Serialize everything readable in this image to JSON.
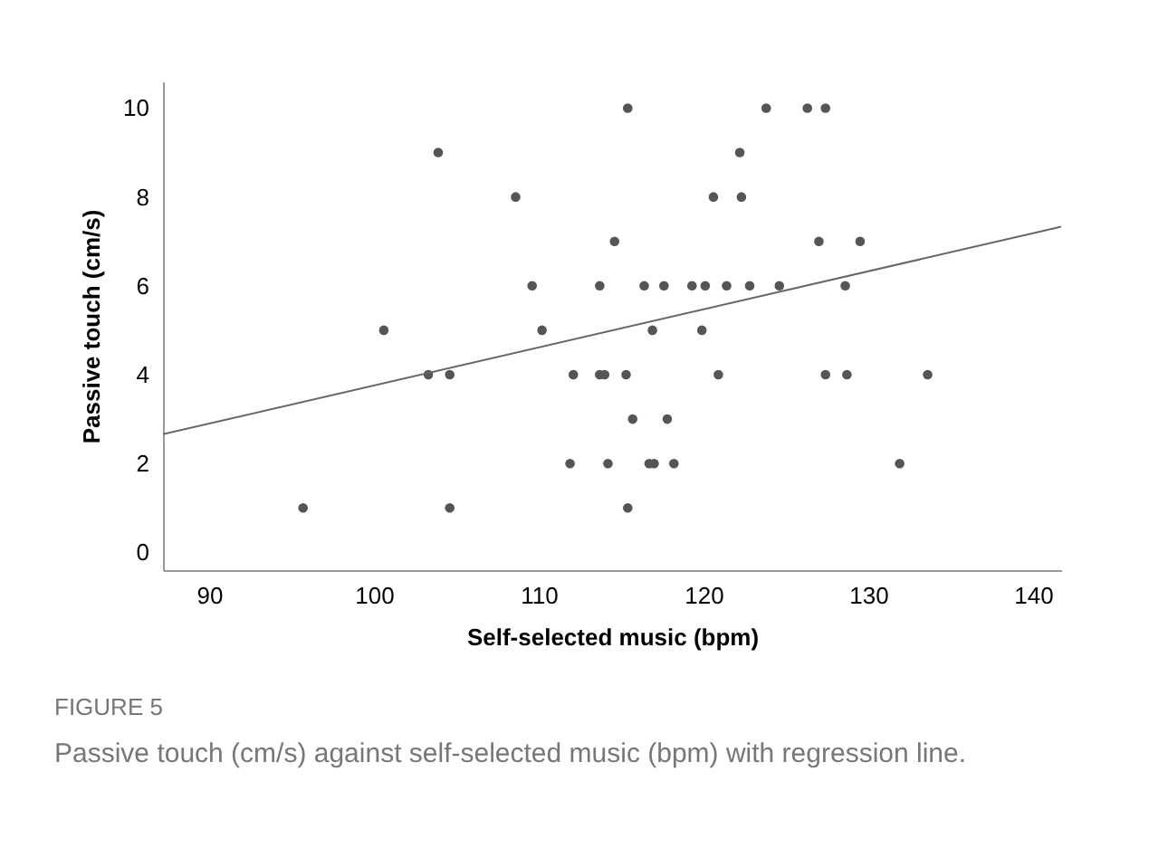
{
  "chart_data": {
    "type": "scatter",
    "xlabel": "Self-selected music (bpm)",
    "ylabel": "Passive touch (cm/s)",
    "xlim": [
      87.2,
      141.7
    ],
    "ylim": [
      -0.4,
      10.6
    ],
    "xticks": [
      90,
      100,
      110,
      120,
      130,
      140
    ],
    "yticks": [
      0,
      2,
      4,
      6,
      8,
      10
    ],
    "grid": false,
    "series": [
      {
        "marker": "circle",
        "color": "#555555",
        "x": [
          95.7,
          100.6,
          103.3,
          103.9,
          104.6,
          104.6,
          108.6,
          109.6,
          110.2,
          111.9,
          112.1,
          113.7,
          113.7,
          114.0,
          114.2,
          114.6,
          115.3,
          115.4,
          115.4,
          115.7,
          116.4,
          116.7,
          117.0,
          116.9,
          117.6,
          117.8,
          118.2,
          119.3,
          119.9,
          120.1,
          120.6,
          120.9,
          121.4,
          122.2,
          122.3,
          122.8,
          123.8,
          124.6,
          126.3,
          127.4,
          127.0,
          129.5,
          128.6,
          127.4,
          128.7,
          133.6,
          131.9
        ],
        "values": [
          1,
          5,
          4,
          9,
          4,
          1,
          8,
          6,
          5,
          2,
          4,
          6,
          4,
          4,
          2,
          7,
          4,
          10,
          1,
          3,
          6,
          2,
          2,
          5,
          6,
          3,
          2,
          6,
          5,
          6,
          8,
          4,
          6,
          9,
          8,
          6,
          10,
          6,
          10,
          10,
          7,
          7,
          6,
          4,
          4,
          4,
          2
        ]
      },
      {
        "type": "line",
        "line_style": "solid",
        "color": "#666666",
        "x": [
          87.2,
          141.7
        ],
        "values": [
          2.66,
          7.33
        ]
      }
    ],
    "annotations": [
      "FIGURE 5",
      "Passive touch (cm/s) against self-selected music (bpm) with regression line."
    ]
  }
}
